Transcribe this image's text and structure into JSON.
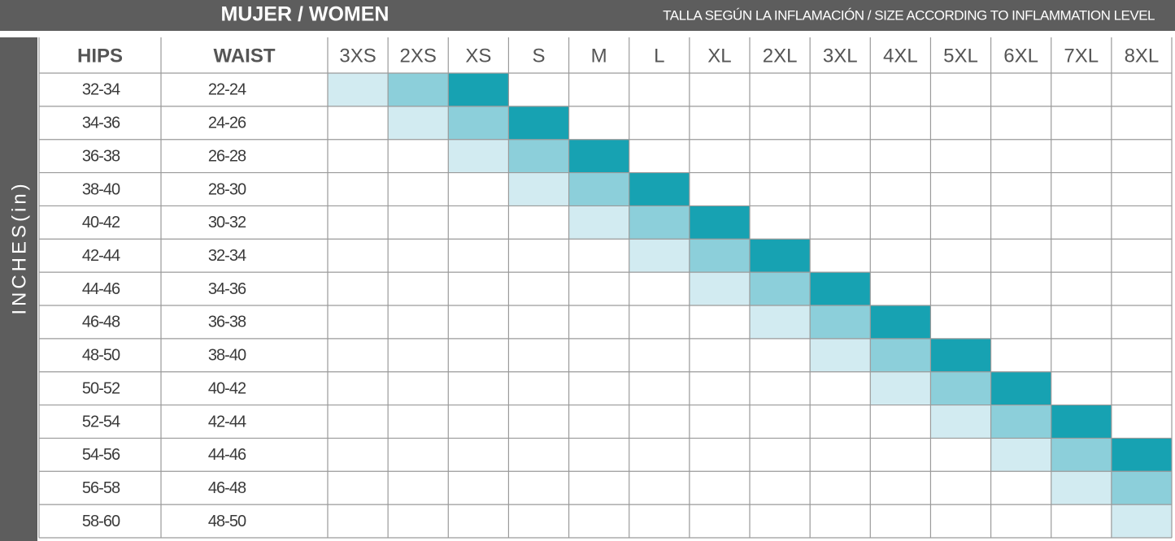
{
  "header": {
    "title": "MUJER / WOMEN",
    "subtitle": "TALLA SEGÚN LA INFLAMACIÓN / SIZE ACCORDING TO INFLAMMATION LEVEL"
  },
  "side_label": "INCHES(in)",
  "table": {
    "columns": [
      "HIPS",
      "WAIST",
      "3XS",
      "2XS",
      "XS",
      "S",
      "M",
      "L",
      "XL",
      "2XL",
      "3XL",
      "4XL",
      "5XL",
      "6XL",
      "7XL",
      "8XL"
    ],
    "rows": [
      [
        "32-34",
        "22-24"
      ],
      [
        "34-36",
        "24-26"
      ],
      [
        "36-38",
        "26-28"
      ],
      [
        "38-40",
        "28-30"
      ],
      [
        "40-42",
        "30-32"
      ],
      [
        "42-44",
        "32-34"
      ],
      [
        "44-46",
        "34-36"
      ],
      [
        "46-48",
        "36-38"
      ],
      [
        "48-50",
        "38-40"
      ],
      [
        "50-52",
        "40-42"
      ],
      [
        "52-54",
        "42-44"
      ],
      [
        "54-56",
        "44-46"
      ],
      [
        "56-58",
        "46-48"
      ],
      [
        "58-60",
        "48-50"
      ]
    ]
  }
}
